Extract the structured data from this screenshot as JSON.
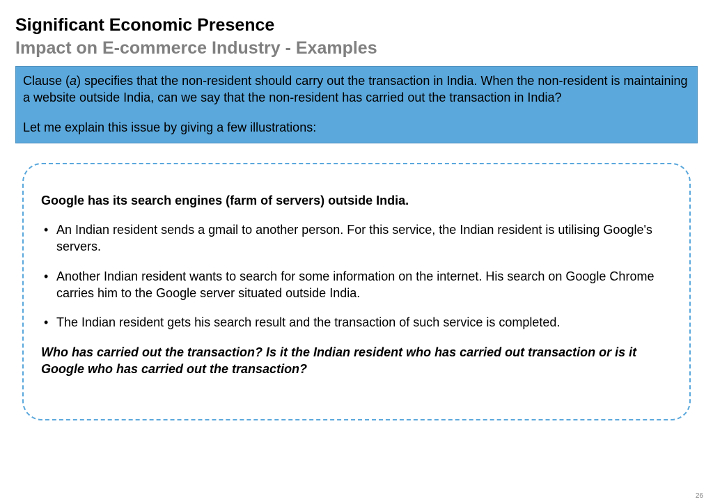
{
  "title": {
    "line1": "Significant Economic Presence",
    "line2": "Impact on E-commerce Industry - Examples"
  },
  "blueBox": {
    "clause_prefix": "Clause (",
    "clause_letter": "a",
    "clause_suffix": ") specifies that the non-resident should carry out the transaction in India. When the non-resident is maintaining a website outside India, can we say that the non-resident has carried out the transaction in India?",
    "para2": "Let me explain this issue by giving a few illustrations:"
  },
  "example": {
    "heading": "Google has its search engines (farm of servers) outside India.",
    "bullets": [
      "An Indian resident sends a gmail to another person. For this service, the Indian resident is utilising Google's servers.",
      "Another Indian resident wants to search for some information on the internet. His search on Google Chrome carries him to the Google server situated outside India.",
      "The Indian resident gets his search result and the transaction of such service is completed."
    ],
    "question": "Who has carried out the transaction? Is it the Indian resident who has carried out transaction or is it Google who has carried out the transaction?"
  },
  "pageNumber": "26"
}
